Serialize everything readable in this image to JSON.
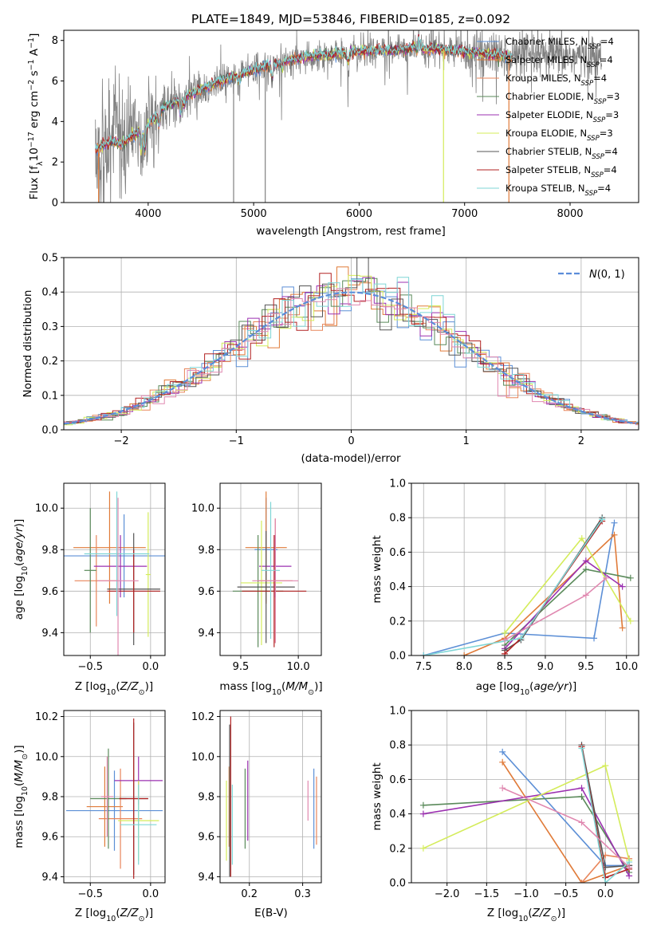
{
  "figure": {
    "title": "PLATE=1849, MJD=53846, FIBERID=0185, z=0.092"
  },
  "colors": {
    "Chabrier MILES": "#5c8fd6",
    "Salpeter MILES": "#e07b39",
    "Kroupa MILES": "#e8855a",
    "Chabrier ELODIE": "#5a8a5a",
    "Salpeter ELODIE": "#9b30b0",
    "Kroupa ELODIE": "#d4ec5a",
    "Chabrier STELIB": "#555555",
    "Salpeter STELIB": "#b22222",
    "Kroupa STELIB": "#7fd6d6",
    "Extra": "#e088b0",
    "data": "#808080",
    "normal": "#5b8dd9"
  },
  "chart_data": [
    {
      "id": "spectrum",
      "type": "line",
      "xlabel": "wavelength [Angstrom, rest frame]",
      "ylabel": "Flux [f_λ 10^-17 erg cm^-2 s^-1 A^-1]",
      "xlim": [
        3200,
        8650
      ],
      "ylim": [
        0,
        8.5
      ],
      "xticks": [
        4000,
        5000,
        6000,
        7000,
        8000
      ],
      "yticks": [
        0,
        2,
        4,
        6,
        8
      ],
      "legend_position": "right",
      "legend": [
        {
          "label": "Chabrier MILES, N_SSP=4",
          "base": "Chabrier MILES, N",
          "sub": "SSP",
          "tail": "=4"
        },
        {
          "label": "Salpeter MILES, N_SSP=4",
          "base": "Salpeter MILES, N",
          "sub": "SSP",
          "tail": "=4"
        },
        {
          "label": "Kroupa MILES, N_SSP=4",
          "base": "Kroupa MILES, N",
          "sub": "SSP",
          "tail": "=4"
        },
        {
          "label": "Chabrier ELODIE, N_SSP=3",
          "base": "Chabrier ELODIE, N",
          "sub": "SSP",
          "tail": "=3"
        },
        {
          "label": "Salpeter ELODIE, N_SSP=3",
          "base": "Salpeter ELODIE, N",
          "sub": "SSP",
          "tail": "=3"
        },
        {
          "label": "Kroupa ELODIE, N_SSP=3",
          "base": "Kroupa ELODIE, N",
          "sub": "SSP",
          "tail": "=3"
        },
        {
          "label": "Chabrier STELIB, N_SSP=4",
          "base": "Chabrier STELIB, N",
          "sub": "SSP",
          "tail": "=4"
        },
        {
          "label": "Salpeter STELIB, N_SSP=4",
          "base": "Salpeter STELIB, N",
          "sub": "SSP",
          "tail": "=4"
        },
        {
          "label": "Kroupa STELIB, N_SSP=4",
          "base": "Kroupa STELIB, N",
          "sub": "SSP",
          "tail": "=4"
        }
      ],
      "continuum": {
        "x": [
          3500,
          3650,
          3750,
          3850,
          3950,
          4050,
          4150,
          4300,
          4500,
          4700,
          4900,
          5100,
          5300,
          5500,
          5700,
          5900,
          6100,
          6300,
          6500,
          6700,
          6900,
          7100,
          7300,
          7450
        ],
        "y": [
          2.6,
          3.0,
          2.9,
          3.3,
          3.6,
          4.1,
          4.7,
          5.1,
          5.6,
          6.0,
          6.4,
          6.7,
          7.0,
          7.2,
          7.3,
          7.4,
          7.5,
          7.5,
          7.6,
          7.6,
          7.5,
          7.4,
          7.3,
          7.2
        ]
      },
      "data_x_range": [
        3500,
        8300
      ],
      "model_x_range": [
        3500,
        7450
      ],
      "absorption_features": [
        {
          "x": 3934,
          "depth": 1.0
        },
        {
          "x": 3969,
          "depth": 1.1
        },
        {
          "x": 4102,
          "depth": 0.6
        },
        {
          "x": 4304,
          "depth": 0.7
        },
        {
          "x": 4341,
          "depth": 0.5
        },
        {
          "x": 4861,
          "depth": 0.6
        },
        {
          "x": 5175,
          "depth": 0.7
        },
        {
          "x": 5270,
          "depth": 0.3
        },
        {
          "x": 5893,
          "depth": 0.5
        }
      ],
      "emission_features": [
        {
          "x": 4861,
          "height": 0.4
        },
        {
          "x": 6563,
          "height": 0.8
        },
        {
          "x": 6583,
          "height": 0.4
        }
      ],
      "spikes": [
        {
          "x": 4810,
          "series": "data",
          "to": 0
        },
        {
          "x": 5110,
          "series": "data",
          "to": 0
        },
        {
          "x": 6800,
          "series": "Kroupa ELODIE",
          "to": 0
        },
        {
          "x": 7420,
          "series": "Salpeter MILES",
          "to": 0
        },
        {
          "x": 3530,
          "series": "Salpeter MILES",
          "to": 0
        }
      ]
    },
    {
      "id": "residuals",
      "type": "step",
      "xlabel": "(data-model)/error",
      "ylabel": "Normed distribution",
      "xlim": [
        -2.5,
        2.5
      ],
      "ylim": [
        0,
        0.5
      ],
      "xticks": [
        -2,
        -1,
        0,
        1,
        2
      ],
      "yticks": [
        0.0,
        0.1,
        0.2,
        0.3,
        0.4,
        0.5
      ],
      "legend_position": "top-right",
      "normal_label": "N(0,1)",
      "bin_width": 0.1
    },
    {
      "id": "age-vs-Z",
      "type": "errorbar",
      "xlabel": "Z [log10(Z/Z_sun)]",
      "ylabel": "age [log10(age/yr)]",
      "xlim": [
        -0.72,
        0.12
      ],
      "ylim": [
        9.29,
        10.12
      ],
      "xticks": [
        -0.5,
        0.0
      ],
      "yticks": [
        9.4,
        9.6,
        9.8,
        10.0
      ],
      "points": [
        {
          "series": "Chabrier MILES",
          "x": -0.22,
          "y": 9.77,
          "xerr": 0.5,
          "yerr": 0.2
        },
        {
          "series": "Salpeter MILES",
          "x": -0.34,
          "y": 9.81,
          "xerr": 0.3,
          "yerr": 0.27
        },
        {
          "series": "Kroupa MILES",
          "x": -0.45,
          "y": 9.65,
          "xerr": 0.18,
          "yerr": 0.22
        },
        {
          "series": "Chabrier ELODIE",
          "x": -0.5,
          "y": 9.7,
          "xerr": 0.05,
          "yerr": 0.3
        },
        {
          "series": "Salpeter ELODIE",
          "x": -0.25,
          "y": 9.72,
          "xerr": 0.22,
          "yerr": 0.15
        },
        {
          "series": "Kroupa ELODIE",
          "x": -0.02,
          "y": 9.68,
          "xerr": 0.02,
          "yerr": 0.3
        },
        {
          "series": "Chabrier STELIB",
          "x": -0.14,
          "y": 9.61,
          "xerr": 0.22,
          "yerr": 0.27
        },
        {
          "series": "Salpeter STELIB",
          "x": -0.14,
          "y": 9.6,
          "xerr": 0.22,
          "yerr": 0.2
        },
        {
          "series": "Kroupa STELIB",
          "x": -0.28,
          "y": 9.78,
          "xerr": 0.27,
          "yerr": 0.3
        },
        {
          "series": "Extra",
          "x": -0.27,
          "y": 9.65,
          "xerr": 0.17,
          "yerr": 0.4
        }
      ]
    },
    {
      "id": "age-vs-mass",
      "type": "errorbar",
      "xlabel": "mass [log10(M/M_sun)]",
      "ylabel": "",
      "xlim": [
        9.32,
        10.2
      ],
      "ylim": [
        9.29,
        10.12
      ],
      "xticks": [
        9.5,
        10.0
      ],
      "yticks": [
        9.4,
        9.6,
        9.8,
        10.0
      ],
      "points": [
        {
          "series": "Chabrier MILES",
          "x": 9.72,
          "y": 9.8,
          "xerr": 0.1,
          "yerr": 0.25
        },
        {
          "series": "Salpeter MILES",
          "x": 9.72,
          "y": 9.81,
          "xerr": 0.18,
          "yerr": 0.27
        },
        {
          "series": "Kroupa MILES",
          "x": 9.8,
          "y": 9.65,
          "xerr": 0.15,
          "yerr": 0.3
        },
        {
          "series": "Chabrier ELODIE",
          "x": 9.65,
          "y": 9.6,
          "xerr": 0.22,
          "yerr": 0.27
        },
        {
          "series": "Salpeter ELODIE",
          "x": 9.8,
          "y": 9.72,
          "xerr": 0.14,
          "yerr": 0.15
        },
        {
          "series": "Kroupa ELODIE",
          "x": 9.68,
          "y": 9.64,
          "xerr": 0.18,
          "yerr": 0.3
        },
        {
          "series": "Chabrier STELIB",
          "x": 9.72,
          "y": 9.62,
          "xerr": 0.25,
          "yerr": 0.27
        },
        {
          "series": "Salpeter STELIB",
          "x": 9.79,
          "y": 9.6,
          "xerr": 0.28,
          "yerr": 0.27
        },
        {
          "series": "Kroupa STELIB",
          "x": 9.76,
          "y": 9.7,
          "xerr": 0.08,
          "yerr": 0.33
        },
        {
          "series": "Extra",
          "x": 9.8,
          "y": 9.65,
          "xerr": 0.2,
          "yerr": 0.3
        }
      ]
    },
    {
      "id": "mass-weight-vs-age",
      "type": "line",
      "xlabel": "age [log10(age/yr)]",
      "ylabel": "mass weight",
      "xlim": [
        7.35,
        10.15
      ],
      "ylim": [
        0.0,
        1.0
      ],
      "xticks": [
        7.5,
        8.0,
        8.5,
        9.0,
        9.5,
        10.0
      ],
      "yticks": [
        0.0,
        0.2,
        0.4,
        0.6,
        0.8,
        1.0
      ],
      "series": [
        {
          "name": "Chabrier MILES",
          "x": [
            7.5,
            8.5,
            9.6,
            9.85
          ],
          "y": [
            0.0,
            0.13,
            0.1,
            0.77
          ]
        },
        {
          "name": "Salpeter MILES",
          "x": [
            8.0,
            8.5,
            9.85,
            9.95
          ],
          "y": [
            0.0,
            0.1,
            0.7,
            0.16
          ]
        },
        {
          "name": "Chabrier ELODIE",
          "x": [
            8.5,
            9.5,
            10.05
          ],
          "y": [
            0.06,
            0.5,
            0.45
          ]
        },
        {
          "name": "Salpeter ELODIE",
          "x": [
            8.5,
            9.5,
            9.95
          ],
          "y": [
            0.04,
            0.55,
            0.4
          ]
        },
        {
          "name": "Kroupa ELODIE",
          "x": [
            8.5,
            9.45,
            10.05
          ],
          "y": [
            0.13,
            0.68,
            0.2
          ]
        },
        {
          "name": "Chabrier STELIB",
          "x": [
            8.5,
            8.7,
            9.7
          ],
          "y": [
            0.03,
            0.09,
            0.8
          ]
        },
        {
          "name": "Salpeter STELIB",
          "x": [
            8.5,
            8.7,
            9.7
          ],
          "y": [
            0.01,
            0.1,
            0.78
          ]
        },
        {
          "name": "Kroupa STELIB",
          "x": [
            7.5,
            8.7,
            9.7
          ],
          "y": [
            0.0,
            0.1,
            0.79
          ]
        },
        {
          "name": "Extra",
          "x": [
            8.5,
            9.5,
            9.75
          ],
          "y": [
            0.09,
            0.35,
            0.45
          ]
        }
      ]
    },
    {
      "id": "mass-vs-Z",
      "type": "errorbar",
      "xlabel": "Z [log10(Z/Z_sun)]",
      "ylabel": "mass [log10(M/M_sun)]",
      "xlim": [
        -0.72,
        0.12
      ],
      "ylim": [
        9.37,
        10.23
      ],
      "xticks": [
        -0.5,
        0.0
      ],
      "yticks": [
        9.4,
        9.6,
        9.8,
        10.0,
        10.2
      ],
      "points": [
        {
          "series": "Chabrier MILES",
          "x": -0.3,
          "y": 9.73,
          "xerr": 0.4,
          "yerr": 0.2
        },
        {
          "series": "Salpeter MILES",
          "x": -0.38,
          "y": 9.75,
          "xerr": 0.15,
          "yerr": 0.2
        },
        {
          "series": "Kroupa MILES",
          "x": -0.25,
          "y": 9.69,
          "xerr": 0.18,
          "yerr": 0.25
        },
        {
          "series": "Chabrier ELODIE",
          "x": -0.35,
          "y": 9.79,
          "xerr": 0.15,
          "yerr": 0.25
        },
        {
          "series": "Salpeter ELODIE",
          "x": -0.1,
          "y": 9.88,
          "xerr": 0.2,
          "yerr": 0.12
        },
        {
          "series": "Kroupa ELODIE",
          "x": -0.1,
          "y": 9.68,
          "xerr": 0.17,
          "yerr": 0.2
        },
        {
          "series": "Chabrier STELIB",
          "x": -0.14,
          "y": 9.79,
          "xerr": 0.12,
          "yerr": 0.38
        },
        {
          "series": "Salpeter STELIB",
          "x": -0.14,
          "y": 9.79,
          "xerr": 0.12,
          "yerr": 0.4
        },
        {
          "series": "Kroupa STELIB",
          "x": -0.1,
          "y": 9.66,
          "xerr": 0.15,
          "yerr": 0.2
        },
        {
          "series": "Extra",
          "x": -0.36,
          "y": 9.8,
          "xerr": 0.05,
          "yerr": 0.2
        }
      ]
    },
    {
      "id": "mass-vs-ebv",
      "type": "errorbar",
      "xlabel": "E(B-V)",
      "ylabel": "",
      "xlim": [
        0.145,
        0.335
      ],
      "ylim": [
        9.37,
        10.23
      ],
      "xticks": [
        0.2,
        0.3
      ],
      "yticks": [
        9.4,
        9.6,
        9.8,
        10.0,
        10.2
      ],
      "points": [
        {
          "series": "Chabrier MILES",
          "x": 0.321,
          "y": 9.74,
          "xerr": 0,
          "yerr": 0.2
        },
        {
          "series": "Salpeter MILES",
          "x": 0.162,
          "y": 9.75,
          "xerr": 0,
          "yerr": 0.2
        },
        {
          "series": "Kroupa MILES",
          "x": 0.326,
          "y": 9.73,
          "xerr": 0,
          "yerr": 0.17
        },
        {
          "series": "Chabrier ELODIE",
          "x": 0.192,
          "y": 9.74,
          "xerr": 0,
          "yerr": 0.2
        },
        {
          "series": "Salpeter ELODIE",
          "x": 0.197,
          "y": 9.78,
          "xerr": 0,
          "yerr": 0.2
        },
        {
          "series": "Kroupa ELODIE",
          "x": 0.157,
          "y": 9.68,
          "xerr": 0,
          "yerr": 0.2
        },
        {
          "series": "Chabrier STELIB",
          "x": 0.163,
          "y": 9.78,
          "xerr": 0,
          "yerr": 0.38
        },
        {
          "series": "Salpeter STELIB",
          "x": 0.165,
          "y": 9.8,
          "xerr": 0,
          "yerr": 0.4
        },
        {
          "series": "Kroupa STELIB",
          "x": 0.168,
          "y": 9.66,
          "xerr": 0,
          "yerr": 0.2
        },
        {
          "series": "Extra",
          "x": 0.31,
          "y": 9.78,
          "xerr": 0,
          "yerr": 0.1
        }
      ]
    },
    {
      "id": "mass-weight-vs-Z",
      "type": "line",
      "xlabel": "Z [log10(Z/Z_sun)]",
      "ylabel": "mass weight",
      "xlim": [
        -2.45,
        0.42
      ],
      "ylim": [
        0.0,
        1.0
      ],
      "xticks": [
        -2.0,
        -1.5,
        -1.0,
        -0.5,
        0.0
      ],
      "yticks": [
        0.0,
        0.2,
        0.4,
        0.6,
        0.8,
        1.0
      ],
      "series": [
        {
          "name": "Chabrier MILES",
          "x": [
            -1.3,
            0.0,
            0.3
          ],
          "y": [
            0.76,
            0.1,
            0.1
          ]
        },
        {
          "name": "Salpeter MILES",
          "x": [
            -1.3,
            -0.3,
            0.3
          ],
          "y": [
            0.7,
            0.0,
            0.1
          ]
        },
        {
          "name": "Kroupa MILES",
          "x": [
            -0.3,
            0.0,
            0.3
          ],
          "y": [
            0.0,
            0.16,
            0.14
          ]
        },
        {
          "name": "Chabrier ELODIE",
          "x": [
            -2.3,
            -0.3,
            0.3
          ],
          "y": [
            0.45,
            0.5,
            0.06
          ]
        },
        {
          "name": "Salpeter ELODIE",
          "x": [
            -2.3,
            -0.3,
            0.3
          ],
          "y": [
            0.4,
            0.55,
            0.04
          ]
        },
        {
          "name": "Kroupa ELODIE",
          "x": [
            -2.3,
            0.0,
            0.3
          ],
          "y": [
            0.2,
            0.68,
            0.13
          ]
        },
        {
          "name": "Chabrier STELIB",
          "x": [
            -0.3,
            0.0,
            0.3
          ],
          "y": [
            0.8,
            0.09,
            0.1
          ]
        },
        {
          "name": "Salpeter STELIB",
          "x": [
            -0.3,
            0.0,
            0.3
          ],
          "y": [
            0.79,
            0.03,
            0.08
          ]
        },
        {
          "name": "Kroupa STELIB",
          "x": [
            -0.3,
            0.0,
            0.3
          ],
          "y": [
            0.78,
            0.0,
            0.12
          ]
        },
        {
          "name": "Extra",
          "x": [
            -1.3,
            -0.3,
            0.3
          ],
          "y": [
            0.55,
            0.35,
            0.09
          ]
        }
      ]
    }
  ]
}
